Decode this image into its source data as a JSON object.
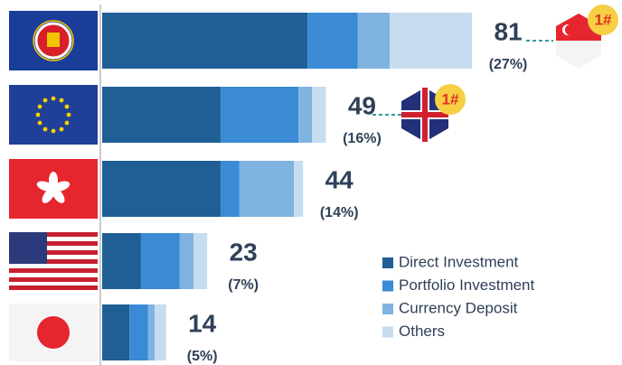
{
  "chart_data": {
    "type": "stacked-bar-horizontal",
    "categories": [
      null,
      null,
      null,
      null,
      null
    ],
    "series": [
      {
        "name": "Direct Investment",
        "color": "#1f5f96",
        "values": [
          45,
          26,
          26,
          8.5,
          6
        ]
      },
      {
        "name": "Portfolio Investment",
        "color": "#3a8ad4",
        "values": [
          11,
          17,
          4,
          8.5,
          4
        ]
      },
      {
        "name": "Currency Deposit",
        "color": "#7fb3e0",
        "values": [
          7,
          3,
          12,
          3,
          1.5
        ]
      },
      {
        "name": "Others",
        "color": "#c6dcf0",
        "values": [
          18,
          3,
          2,
          3,
          2.5
        ]
      }
    ],
    "totals": [
      81,
      49,
      44,
      23,
      14
    ],
    "shares": [
      27,
      16,
      14,
      7,
      5
    ],
    "share_labels": [
      "(27%)",
      "(16%)",
      "(14%)",
      "(7%)",
      "(5%)"
    ],
    "annotations": [
      "1#",
      "1#"
    ]
  }
}
